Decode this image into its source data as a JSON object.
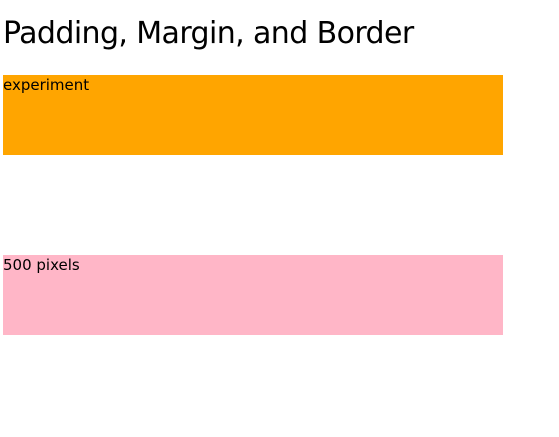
{
  "page": {
    "title": "Padding, Margin, and Border"
  },
  "boxes": [
    {
      "label": "experiment",
      "color": "#ffa500"
    },
    {
      "label": "500 pixels",
      "color": "#ffb6c7"
    }
  ]
}
